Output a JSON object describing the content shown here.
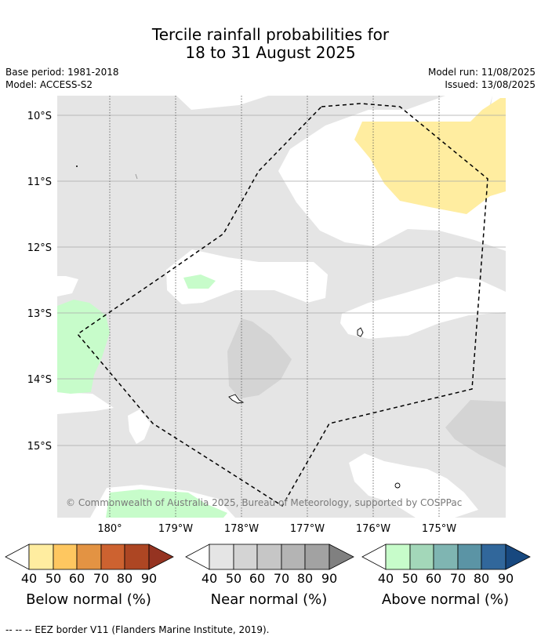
{
  "title": {
    "line1": "Tercile rainfall probabilities for",
    "line2": "18 to 31 August 2025"
  },
  "meta": {
    "base_period": "Base period: 1981-2018",
    "model": "Model: ACCESS-S2",
    "model_run": "Model run: 11/08/2025",
    "issued": "Issued: 13/08/2025"
  },
  "map": {
    "lat_labels": [
      "10°S",
      "11°S",
      "12°S",
      "13°S",
      "14°S",
      "15°S"
    ],
    "lon_labels": [
      "180°",
      "179°W",
      "178°W",
      "177°W",
      "176°W",
      "175°W"
    ],
    "copyright": "© Commonwealth of Australia 2025, Bureau of Meteorology, supported by COSPPac",
    "colors": {
      "near_normal_40": "#e5e5e5",
      "near_normal_50": "#d4d4d4",
      "below_normal_40": "#ffeda0",
      "above_normal_40": "#c7fcca"
    }
  },
  "colorbars": [
    {
      "title": "Below normal (%)",
      "ticks": [
        "40",
        "50",
        "60",
        "70",
        "80",
        "90"
      ],
      "colors": [
        "#ffeda0",
        "#fec760",
        "#e39343",
        "#cd6230",
        "#ad4623",
        "#953321"
      ]
    },
    {
      "title": "Near normal (%)",
      "ticks": [
        "40",
        "50",
        "60",
        "70",
        "80",
        "90"
      ],
      "colors": [
        "#e5e5e5",
        "#d4d4d4",
        "#c6c6c6",
        "#b4b4b4",
        "#a2a2a2",
        "#808080"
      ]
    },
    {
      "title": "Above normal (%)",
      "ticks": [
        "40",
        "50",
        "60",
        "70",
        "80",
        "90"
      ],
      "colors": [
        "#c7fcca",
        "#a3d7b9",
        "#7fb5b2",
        "#5b94a5",
        "#31679b",
        "#17487f"
      ]
    }
  ],
  "footnote": "--  --  -- EEZ border V11 (Flanders Marine Institute, 2019)."
}
